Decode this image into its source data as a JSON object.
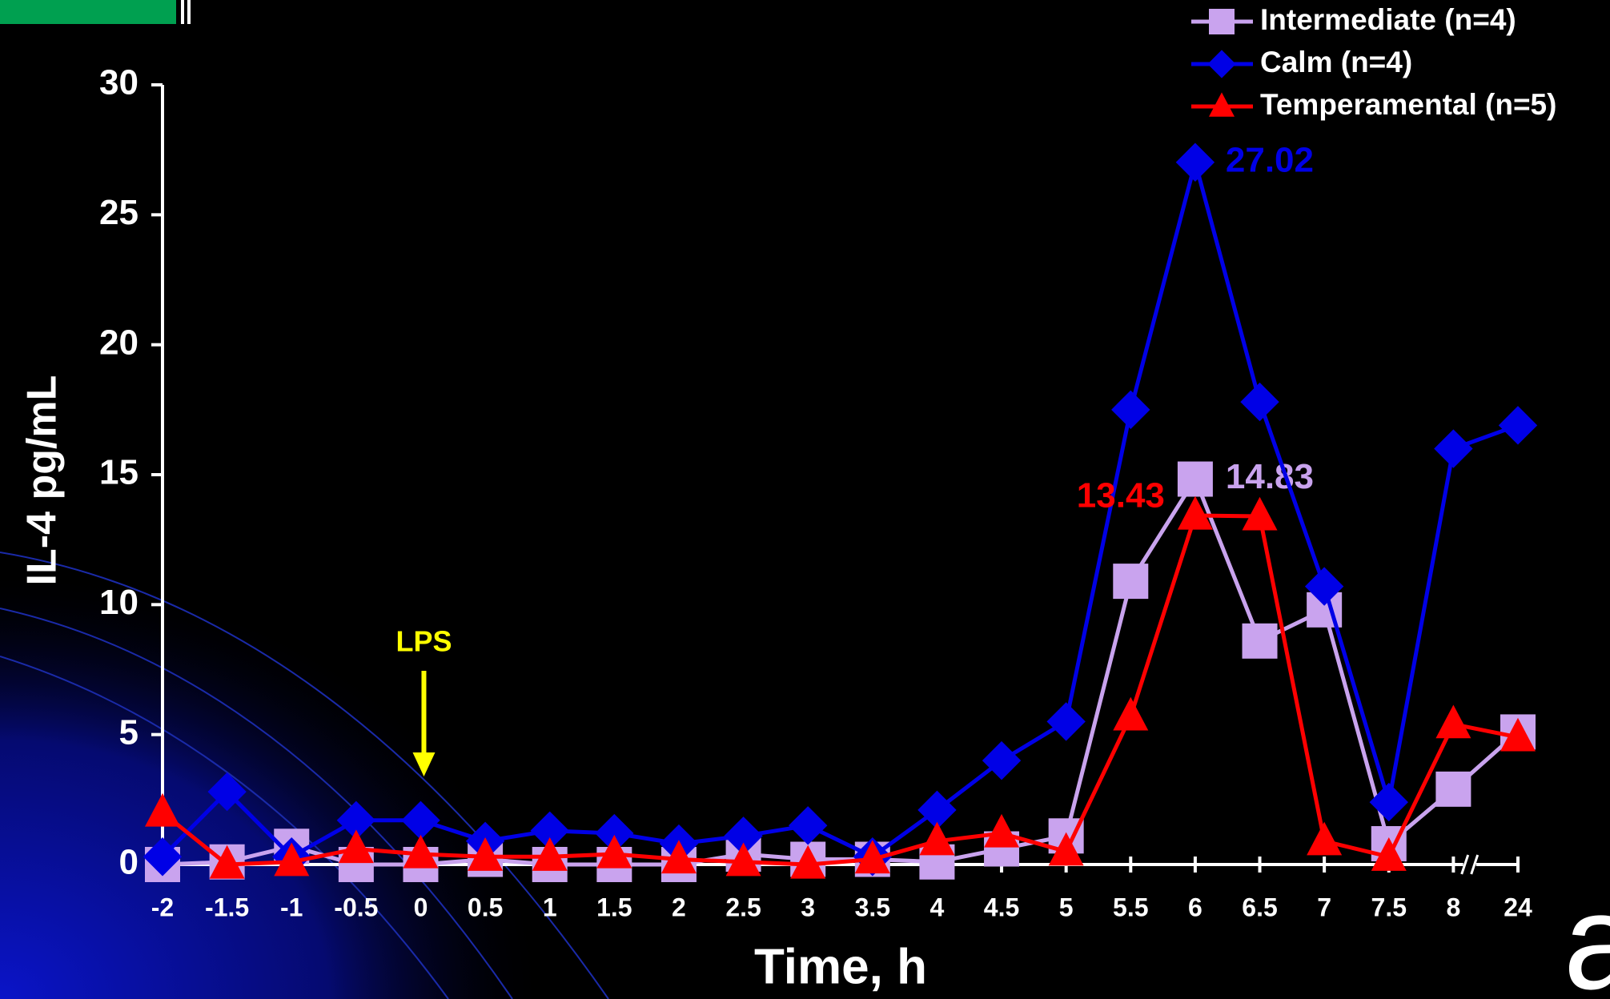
{
  "chart_data": {
    "type": "line",
    "y_label": "IL-4 pg/mL",
    "x_label": "Time, h",
    "annotation": "LPS",
    "corner_mark": "a",
    "categories": [
      "-2",
      "-1.5",
      "-1",
      "-0.5",
      "0",
      "0.5",
      "1",
      "1.5",
      "2",
      "2.5",
      "3",
      "3.5",
      "4",
      "4.5",
      "5",
      "5.5",
      "6",
      "6.5",
      "7",
      "7.5",
      "8",
      "24"
    ],
    "ylim": [
      0,
      30
    ],
    "yticks": [
      0,
      5,
      10,
      15,
      20,
      25,
      30
    ],
    "label_max": true,
    "series": [
      {
        "name": "Intermediate (n=4)",
        "color": "#c9a3ee",
        "marker": "square",
        "values": [
          0,
          0.1,
          0.7,
          0,
          0,
          0.2,
          0,
          0,
          0,
          0.4,
          0.2,
          0.2,
          0.1,
          0.6,
          1.1,
          10.9,
          14.83,
          8.6,
          9.8,
          0.8,
          2.9,
          5.1
        ]
      },
      {
        "name": "Calm (n=4)",
        "color": "#0000e6",
        "marker": "diamond",
        "values": [
          0.3,
          2.8,
          0.3,
          1.7,
          1.7,
          0.9,
          1.3,
          1.2,
          0.8,
          1.1,
          1.5,
          0.3,
          2.1,
          4.0,
          5.5,
          17.5,
          27.02,
          17.8,
          10.7,
          2.4,
          16.0,
          16.9
        ]
      },
      {
        "name": "Temperamental (n=5)",
        "color": "#ff0000",
        "marker": "triangle",
        "values": [
          2.0,
          0,
          0.1,
          0.6,
          0.4,
          0.3,
          0.3,
          0.4,
          0.2,
          0.1,
          0,
          0.2,
          0.9,
          1.2,
          0.5,
          5.7,
          13.43,
          13.4,
          0.9,
          0.3,
          5.4,
          4.9
        ]
      }
    ]
  }
}
